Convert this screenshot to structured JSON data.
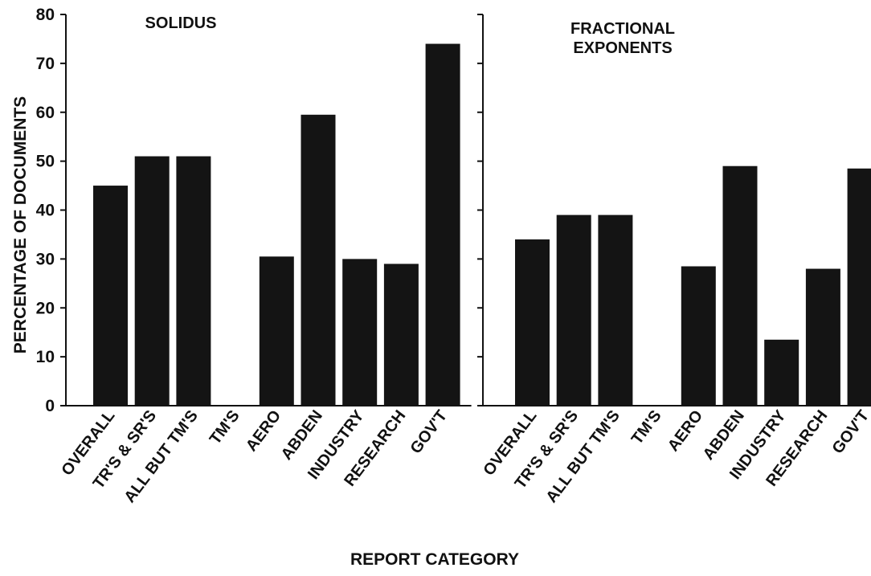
{
  "chart_data": [
    {
      "type": "bar",
      "title_lines": [
        "SOLIDUS"
      ],
      "categories": [
        "OVERALL",
        "TR'S & SR'S",
        "ALL BUT TM'S",
        "TM'S",
        "AERO",
        "ABDEN",
        "INDUSTRY",
        "RESEARCH",
        "GOV'T"
      ],
      "values": [
        45,
        51,
        51,
        0,
        30.5,
        59.5,
        30,
        29,
        74
      ],
      "ylabel": "PERCENTAGE OF DOCUMENTS",
      "ylim": [
        0,
        80
      ],
      "yticks": [
        "0",
        "10",
        "20",
        "30",
        "40",
        "50",
        "60",
        "70",
        "80"
      ],
      "grid": false
    },
    {
      "type": "bar",
      "title_lines": [
        "FRACTIONAL",
        "EXPONENTS"
      ],
      "categories": [
        "OVERALL",
        "TR'S & SR'S",
        "ALL BUT TM'S",
        "TM'S",
        "AERO",
        "ABDEN",
        "INDUSTRY",
        "RESEARCH",
        "GOV'T"
      ],
      "values": [
        34,
        39,
        39,
        0,
        28.5,
        49,
        13.5,
        28,
        48.5
      ],
      "ylim": [
        0,
        80
      ],
      "grid": false
    }
  ],
  "xlabel": "REPORT CATEGORY",
  "colors": {
    "bar": "#141414",
    "axis": "#111111",
    "background": "#ffffff"
  }
}
